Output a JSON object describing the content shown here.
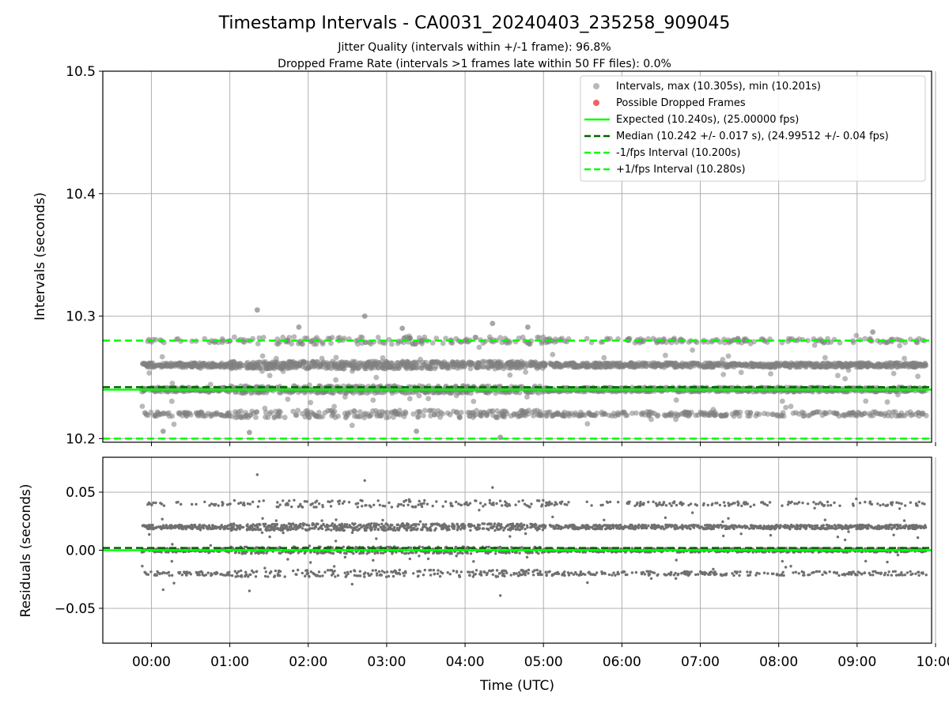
{
  "chart_data": {
    "title": "Timestamp Intervals - CA0031_20240403_235258_909045",
    "subtitles": [
      "Jitter Quality (intervals within +/-1 frame): 96.8%",
      "Dropped Frame Rate (intervals >1 frames late within 50 FF files): 0.0%"
    ],
    "grid": true,
    "xlabel": "Time (UTC)",
    "x_unit": "hours since 00:00 UTC",
    "x_range": [
      -0.62,
      9.95
    ],
    "x_ticks": [
      0,
      1,
      2,
      3,
      4,
      5,
      6,
      7,
      8,
      9,
      10
    ],
    "x_ticklabels": [
      "00:00",
      "01:00",
      "02:00",
      "03:00",
      "04:00",
      "05:00",
      "06:00",
      "07:00",
      "08:00",
      "09:00",
      "10:00"
    ],
    "panels": [
      {
        "type": "scatter",
        "ylabel": "Intervals (seconds)",
        "ylim": [
          10.197,
          10.5
        ],
        "y_ticks": [
          10.2,
          10.3,
          10.4,
          10.5
        ],
        "y_ticklabels": [
          "10.2",
          "10.3",
          "10.4",
          "10.5"
        ],
        "legend_position": "top-right",
        "series": [
          {
            "name": "Intervals, max (10.305s), min (10.201s)",
            "kind": "scatter",
            "color": "#808080",
            "x_range": [
              -0.12,
              9.88
            ],
            "levels": [
              10.22,
              10.24,
              10.26,
              10.28
            ],
            "level_weights": [
              0.16,
              0.35,
              0.4,
              0.09
            ],
            "max": 10.305,
            "min": 10.201,
            "approx_count": 3500,
            "outliers": [
              [
                1.35,
                10.305
              ],
              [
                2.72,
                10.3
              ],
              [
                1.88,
                10.291
              ],
              [
                3.2,
                10.29
              ],
              [
                4.35,
                10.294
              ],
              [
                4.8,
                10.291
              ],
              [
                9.2,
                10.287
              ],
              [
                4.45,
                10.201
              ],
              [
                3.38,
                10.206
              ],
              [
                1.25,
                10.205
              ],
              [
                0.15,
                10.206
              ]
            ]
          },
          {
            "name": "Possible Dropped Frames",
            "kind": "scatter",
            "color": "#ef6464",
            "points": []
          },
          {
            "name": "Expected (10.240s), (25.00000 fps)",
            "kind": "hline",
            "y": 10.24,
            "color": "#00ff00",
            "style": "solid"
          },
          {
            "name": "Median (10.242 +/- 0.017 s), (24.99512 +/- 0.04 fps)",
            "kind": "hline",
            "y": 10.242,
            "color": "#006400",
            "style": "dashed"
          },
          {
            "name": "-1/fps Interval (10.200s)",
            "kind": "hline",
            "y": 10.2,
            "color": "#00ff00",
            "style": "dashed"
          },
          {
            "name": "+1/fps Interval (10.280s)",
            "kind": "hline",
            "y": 10.28,
            "color": "#00ff00",
            "style": "dashed"
          }
        ]
      },
      {
        "type": "scatter",
        "ylabel": "Residuals (seconds)",
        "ylim": [
          -0.08,
          0.08
        ],
        "y_ticks": [
          -0.05,
          0.0,
          0.05
        ],
        "y_ticklabels": [
          "−0.05",
          "0.00",
          "0.05"
        ],
        "series": [
          {
            "kind": "scatter",
            "color": "#707070",
            "note": "interval minus expected",
            "levels": [
              -0.02,
              0.0,
              0.02,
              0.04
            ],
            "outliers": [
              [
                1.35,
                0.065
              ],
              [
                2.72,
                0.06
              ],
              [
                4.35,
                0.054
              ],
              [
                4.45,
                -0.039
              ],
              [
                1.25,
                -0.035
              ],
              [
                0.15,
                -0.034
              ]
            ]
          },
          {
            "kind": "hline",
            "y": 0.0,
            "color": "#00ff00",
            "style": "solid"
          },
          {
            "kind": "hline",
            "y": 0.002,
            "color": "#006400",
            "style": "dashed"
          }
        ]
      }
    ]
  }
}
